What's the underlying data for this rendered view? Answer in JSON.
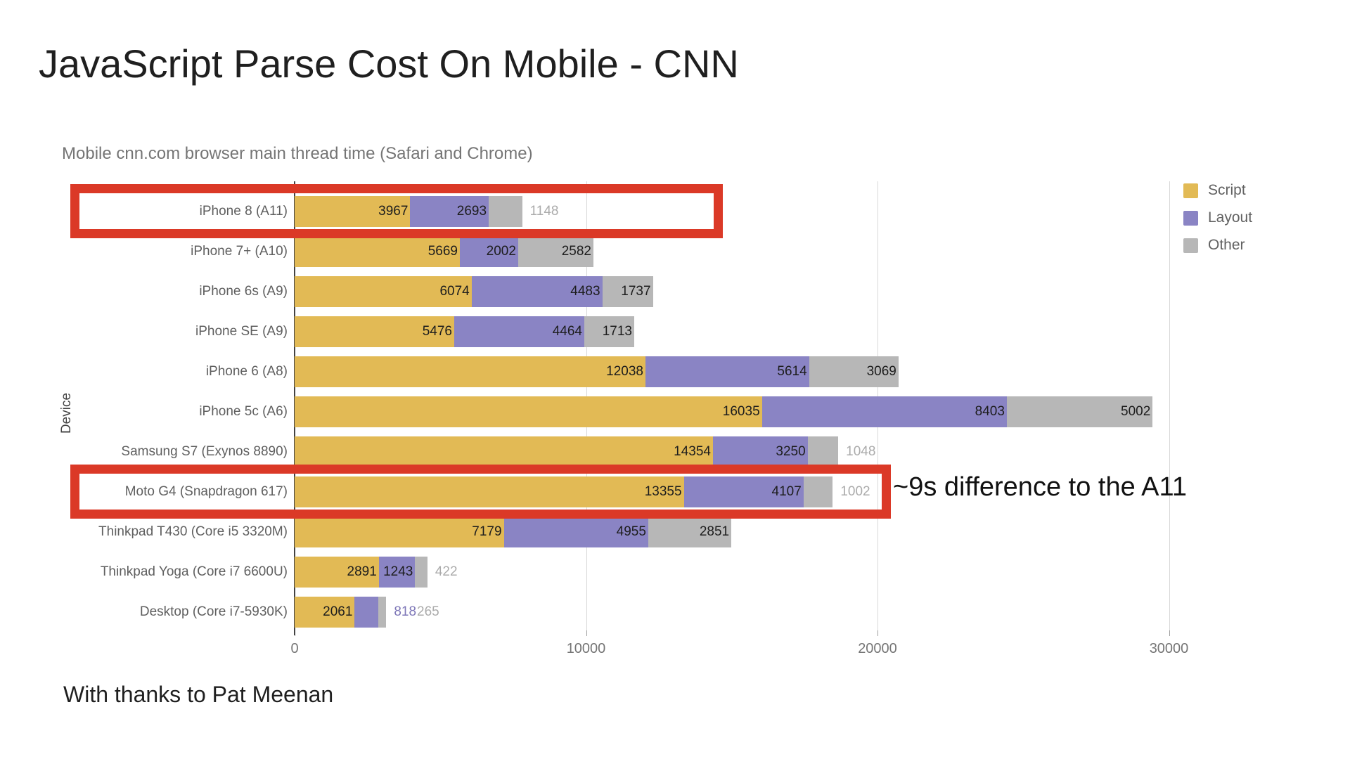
{
  "page": {
    "title": "JavaScript Parse Cost On Mobile - CNN",
    "footer": "With thanks to Pat Meenan"
  },
  "chart_data": {
    "type": "bar",
    "orientation": "horizontal",
    "stacked": true,
    "title": "Mobile cnn.com browser main thread time (Safari and Chrome)",
    "xlabel": "",
    "ylabel": "Device",
    "xlim": [
      0,
      30000
    ],
    "x_ticks": [
      "0",
      "10000",
      "20000",
      "30000"
    ],
    "x_tick_values": [
      0,
      10000,
      20000,
      30000
    ],
    "grid": true,
    "legend_position": "top-right",
    "categories": [
      "iPhone 8 (A11)",
      "iPhone 7+ (A10)",
      "iPhone 6s (A9)",
      "iPhone SE (A9)",
      "iPhone 6 (A8)",
      "iPhone 5c (A6)",
      "Samsung S7 (Exynos 8890)",
      "Moto G4 (Snapdragon 617)",
      "Thinkpad T430 (Core i5 3320M)",
      "Thinkpad Yoga (Core i7 6600U)",
      "Desktop (Core i7-5930K)"
    ],
    "series": [
      {
        "name": "Script",
        "color": "#e2ba55",
        "outside_label_color": "#ababab",
        "values": [
          3967,
          5669,
          6074,
          5476,
          12038,
          16035,
          14354,
          13355,
          7179,
          2891,
          2061
        ],
        "outside_label_indices": []
      },
      {
        "name": "Layout",
        "color": "#8a84c4",
        "outside_label_color": "#7e77b8",
        "values": [
          2693,
          2002,
          4483,
          4464,
          5614,
          8403,
          3250,
          4107,
          4955,
          1243,
          818
        ],
        "outside_label_indices": [
          10
        ]
      },
      {
        "name": "Other",
        "color": "#b7b7b7",
        "outside_label_color": "#ababab",
        "values": [
          1148,
          2582,
          1737,
          1713,
          3069,
          5002,
          1048,
          1002,
          2851,
          422,
          265
        ],
        "outside_label_indices": [
          0,
          6,
          7,
          9,
          10
        ]
      }
    ],
    "highlights": [
      {
        "category_index": 0,
        "color": "#db3927",
        "note": ""
      },
      {
        "category_index": 7,
        "color": "#db3927",
        "note": "~9s difference to the A11"
      }
    ]
  }
}
